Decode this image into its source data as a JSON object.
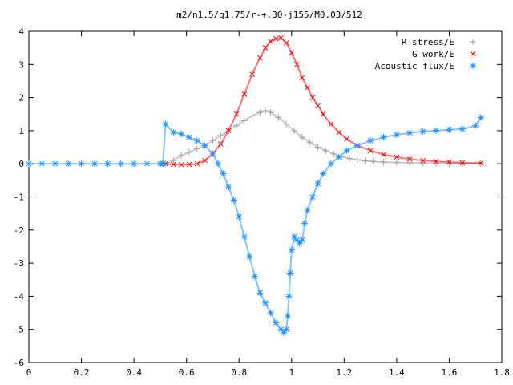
{
  "chart_data": {
    "type": "scatter",
    "title": "m2/n1.5/q1.75/r-+.30-j155/M0.03/512",
    "xlabel": "",
    "ylabel": "",
    "xlim": [
      0,
      1.8
    ],
    "ylim": [
      -6,
      4
    ],
    "xticks": [
      0,
      0.2,
      0.4,
      0.6,
      0.8,
      1,
      1.2,
      1.4,
      1.6,
      1.8
    ],
    "yticks": [
      -6,
      -5,
      -4,
      -3,
      -2,
      -1,
      0,
      1,
      2,
      3,
      4
    ],
    "xtick_labels": [
      "0",
      "0.2",
      "0.4",
      "0.6",
      "0.8",
      "1",
      "1.2",
      "1.4",
      "1.6",
      "1.8"
    ],
    "ytick_labels": [
      "-6",
      "-5",
      "-4",
      "-3",
      "-2",
      "-1",
      "0",
      "1",
      "2",
      "3",
      "4"
    ],
    "grid": false,
    "legend_position": "top-right",
    "series": [
      {
        "name": "R stress/E",
        "marker": "plus",
        "color": "#a0a0a0",
        "x": [
          0.52,
          0.55,
          0.58,
          0.61,
          0.64,
          0.67,
          0.7,
          0.73,
          0.76,
          0.79,
          0.82,
          0.85,
          0.88,
          0.9,
          0.92,
          0.95,
          0.98,
          1.01,
          1.04,
          1.07,
          1.1,
          1.13,
          1.16,
          1.19,
          1.22,
          1.25,
          1.28,
          1.31,
          1.35,
          1.4,
          1.45,
          1.5,
          1.55,
          1.6,
          1.65,
          1.72
        ],
        "y": [
          0.0,
          0.1,
          0.25,
          0.35,
          0.45,
          0.55,
          0.7,
          0.85,
          1.0,
          1.15,
          1.3,
          1.45,
          1.55,
          1.6,
          1.55,
          1.4,
          1.2,
          1.0,
          0.8,
          0.65,
          0.5,
          0.4,
          0.3,
          0.22,
          0.16,
          0.12,
          0.09,
          0.07,
          0.05,
          0.04,
          0.03,
          0.02,
          0.01,
          0.01,
          0.01,
          0.01
        ]
      },
      {
        "name": "G work/E",
        "marker": "cross",
        "color": "#ff0000",
        "x": [
          0.52,
          0.55,
          0.58,
          0.61,
          0.64,
          0.67,
          0.7,
          0.73,
          0.76,
          0.79,
          0.82,
          0.85,
          0.88,
          0.9,
          0.92,
          0.94,
          0.96,
          0.98,
          1.0,
          1.02,
          1.04,
          1.06,
          1.08,
          1.1,
          1.12,
          1.15,
          1.18,
          1.21,
          1.25,
          1.3,
          1.35,
          1.4,
          1.45,
          1.5,
          1.55,
          1.6,
          1.65,
          1.72
        ],
        "y": [
          0.0,
          -0.02,
          -0.03,
          -0.02,
          0.0,
          0.1,
          0.3,
          0.6,
          1.0,
          1.5,
          2.1,
          2.7,
          3.2,
          3.5,
          3.7,
          3.78,
          3.8,
          3.65,
          3.35,
          3.0,
          2.6,
          2.3,
          2.0,
          1.75,
          1.5,
          1.2,
          0.95,
          0.75,
          0.55,
          0.4,
          0.28,
          0.2,
          0.14,
          0.1,
          0.07,
          0.05,
          0.03,
          0.02
        ]
      },
      {
        "name": "Acoustic flux/E",
        "marker": "star",
        "color": "#1e90ff",
        "x": [
          0.0,
          0.05,
          0.1,
          0.15,
          0.2,
          0.25,
          0.3,
          0.35,
          0.4,
          0.45,
          0.5,
          0.51,
          0.52,
          0.55,
          0.58,
          0.61,
          0.64,
          0.67,
          0.7,
          0.72,
          0.74,
          0.76,
          0.78,
          0.8,
          0.82,
          0.84,
          0.86,
          0.88,
          0.9,
          0.92,
          0.94,
          0.96,
          0.97,
          0.98,
          0.985,
          0.99,
          0.995,
          1.0,
          1.01,
          1.02,
          1.03,
          1.04,
          1.05,
          1.06,
          1.08,
          1.1,
          1.12,
          1.15,
          1.18,
          1.21,
          1.25,
          1.3,
          1.35,
          1.4,
          1.45,
          1.5,
          1.55,
          1.6,
          1.65,
          1.7,
          1.72
        ],
        "y": [
          0.0,
          0.0,
          0.0,
          0.0,
          0.0,
          0.0,
          0.0,
          0.0,
          0.0,
          0.0,
          0.0,
          0.0,
          1.2,
          0.95,
          0.9,
          0.8,
          0.7,
          0.55,
          0.3,
          0.0,
          -0.3,
          -0.7,
          -1.1,
          -1.6,
          -2.2,
          -2.8,
          -3.4,
          -3.9,
          -4.2,
          -4.5,
          -4.8,
          -5.0,
          -5.1,
          -5.0,
          -4.6,
          -4.0,
          -3.3,
          -2.6,
          -2.2,
          -2.3,
          -2.4,
          -2.3,
          -1.8,
          -1.4,
          -1.0,
          -0.6,
          -0.3,
          0.0,
          0.2,
          0.4,
          0.55,
          0.7,
          0.8,
          0.88,
          0.93,
          0.98,
          1.0,
          1.03,
          1.05,
          1.15,
          1.4
        ]
      }
    ]
  }
}
